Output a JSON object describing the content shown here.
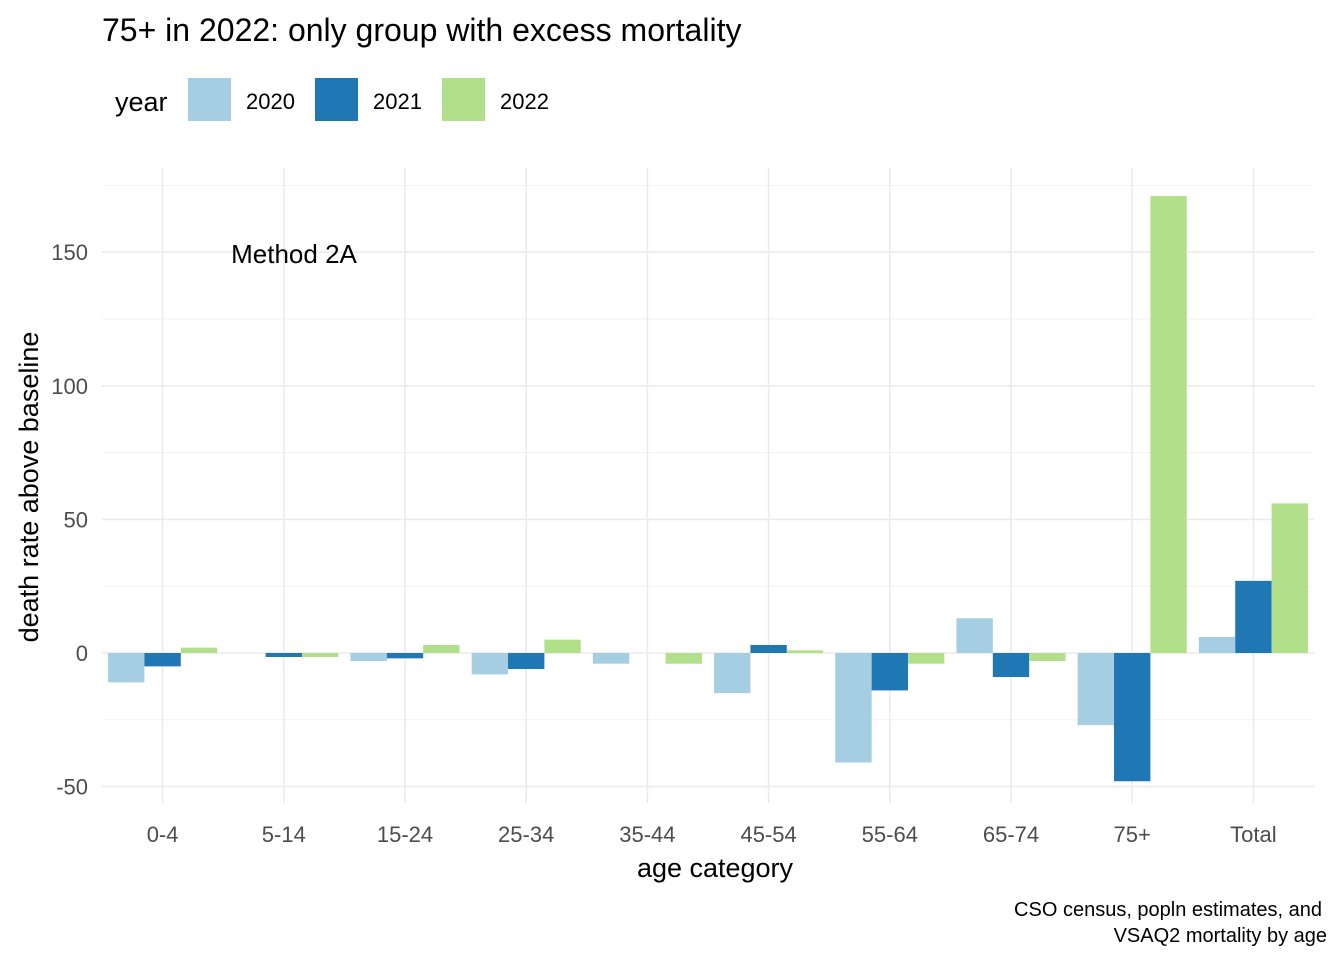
{
  "chart_data": {
    "type": "bar",
    "title": "75+ in 2022: only group with excess mortality",
    "xlabel": "age category",
    "ylabel": "death rate above baseline",
    "annotation": "Method 2A",
    "caption_lines": [
      "CSO census, popln estimates, and",
      "VSAQ2 mortality by age"
    ],
    "legend_title": "year",
    "legend_position": "top-left",
    "grid": true,
    "ylim": [
      -52,
      180
    ],
    "yticks": [
      -50,
      0,
      50,
      100,
      150
    ],
    "categories": [
      "0-4",
      "5-14",
      "15-24",
      "25-34",
      "35-44",
      "45-54",
      "55-64",
      "65-74",
      "75+",
      "Total"
    ],
    "series": [
      {
        "name": "2020",
        "color": "#a6cee3",
        "values": [
          -11,
          0,
          -3,
          -8,
          -4,
          -15,
          -41,
          13,
          -27,
          6
        ]
      },
      {
        "name": "2021",
        "color": "#1f78b4",
        "values": [
          -5,
          -1.5,
          -2,
          -6,
          0,
          3,
          -14,
          -9,
          -48,
          27
        ]
      },
      {
        "name": "2022",
        "color": "#b2df8a",
        "values": [
          2,
          -1.5,
          3,
          5,
          -4,
          1,
          -4,
          -3,
          171,
          56
        ]
      }
    ]
  }
}
